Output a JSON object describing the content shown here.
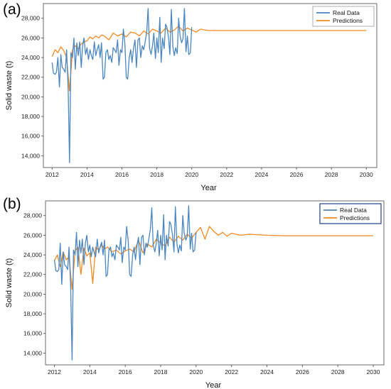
{
  "chart_data": [
    {
      "type": "line",
      "panel_label": "(a)",
      "xlabel": "Year",
      "ylabel": "Solid waste (t)",
      "xlim": [
        2011.5,
        2030.6
      ],
      "ylim": [
        12800,
        29500
      ],
      "xticks": [
        2012,
        2014,
        2016,
        2018,
        2020,
        2022,
        2024,
        2026,
        2028,
        2030
      ],
      "yticks": [
        14000,
        16000,
        18000,
        20000,
        22000,
        24000,
        26000,
        28000
      ],
      "grid": false,
      "legend_position": "top-right",
      "series": [
        {
          "name": "Real Data",
          "color": "#4a86c0",
          "x": [
            2012.0,
            2012.08,
            2012.17,
            2012.25,
            2012.33,
            2012.42,
            2012.5,
            2012.58,
            2012.67,
            2012.75,
            2012.83,
            2012.92,
            2013.0,
            2013.08,
            2013.17,
            2013.25,
            2013.33,
            2013.42,
            2013.5,
            2013.58,
            2013.67,
            2013.75,
            2013.83,
            2013.92,
            2014.0,
            2014.08,
            2014.17,
            2014.25,
            2014.33,
            2014.42,
            2014.5,
            2014.58,
            2014.67,
            2014.75,
            2014.83,
            2014.92,
            2015.0,
            2015.08,
            2015.17,
            2015.25,
            2015.33,
            2015.42,
            2015.5,
            2015.58,
            2015.67,
            2015.75,
            2015.83,
            2015.92,
            2016.0,
            2016.08,
            2016.17,
            2016.25,
            2016.33,
            2016.42,
            2016.5,
            2016.58,
            2016.67,
            2016.75,
            2016.83,
            2016.92,
            2017.0,
            2017.08,
            2017.17,
            2017.25,
            2017.33,
            2017.42,
            2017.5,
            2017.58,
            2017.67,
            2017.75,
            2017.83,
            2017.92,
            2018.0,
            2018.08,
            2018.17,
            2018.25,
            2018.33,
            2018.42,
            2018.5,
            2018.58,
            2018.67,
            2018.75,
            2018.83,
            2018.92,
            2019.0,
            2019.08,
            2019.17,
            2019.25,
            2019.33,
            2019.42,
            2019.5,
            2019.58,
            2019.67,
            2019.75,
            2019.83,
            2019.92,
            2020.0
          ],
          "y": [
            23500,
            22400,
            22300,
            22500,
            24000,
            21000,
            24300,
            23000,
            22800,
            22500,
            24800,
            20800,
            13300,
            24500,
            24000,
            26000,
            22800,
            25500,
            24200,
            25600,
            23000,
            25200,
            26000,
            24300,
            25000,
            23800,
            24800,
            24200,
            23800,
            25600,
            24200,
            24800,
            25300,
            24000,
            25500,
            21800,
            22000,
            24500,
            24800,
            23800,
            24200,
            23500,
            25000,
            24800,
            24500,
            25800,
            23200,
            24800,
            24500,
            26900,
            25400,
            22000,
            21800,
            24000,
            24800,
            23500,
            25000,
            25800,
            23000,
            25800,
            26000,
            24000,
            25200,
            24800,
            25600,
            26600,
            29000,
            25000,
            24300,
            25200,
            26500,
            23900,
            26000,
            24500,
            28100,
            23500,
            26000,
            24900,
            27400,
            27100,
            26000,
            24300,
            28900,
            25100,
            24200,
            25000,
            24400,
            28000,
            26200,
            25500,
            25900,
            29000,
            24600,
            26200,
            24300,
            24500,
            27100
          ]
        },
        {
          "name": "Predictions",
          "color": "#f08a24",
          "x": [
            2012.0,
            2012.17,
            2012.33,
            2012.5,
            2012.67,
            2012.83,
            2013.0,
            2013.17,
            2013.33,
            2013.5,
            2013.67,
            2013.83,
            2014.0,
            2014.17,
            2014.33,
            2014.5,
            2014.67,
            2014.83,
            2015.0,
            2015.25,
            2015.5,
            2015.75,
            2016.0,
            2016.25,
            2016.5,
            2016.75,
            2017.0,
            2017.25,
            2017.5,
            2017.75,
            2018.0,
            2018.25,
            2018.5,
            2018.75,
            2019.0,
            2019.25,
            2019.5,
            2019.75,
            2020.0,
            2020.25,
            2020.5,
            2020.75,
            2021.0,
            2021.5,
            2022.0,
            2024.0,
            2026.0,
            2028.0,
            2030.0
          ],
          "y": [
            24100,
            24800,
            24500,
            25100,
            24700,
            24000,
            20600,
            24800,
            25200,
            24900,
            25400,
            25600,
            25700,
            26100,
            25900,
            26200,
            26000,
            26300,
            26200,
            25800,
            26500,
            26200,
            26400,
            26100,
            26600,
            26500,
            26200,
            26700,
            26400,
            26900,
            26700,
            26500,
            27000,
            26600,
            26800,
            27200,
            26700,
            27000,
            26800,
            26600,
            26900,
            26800,
            26750,
            26750,
            26750,
            26750,
            26750,
            26750,
            26750
          ]
        }
      ]
    },
    {
      "type": "line",
      "panel_label": "(b)",
      "xlabel": "Year",
      "ylabel": "Solid waste (t)",
      "xlim": [
        2011.5,
        2030.6
      ],
      "ylim": [
        12800,
        29500
      ],
      "xticks": [
        2012,
        2014,
        2016,
        2018,
        2020,
        2022,
        2024,
        2026,
        2028,
        2030
      ],
      "yticks": [
        14000,
        16000,
        18000,
        20000,
        22000,
        24000,
        26000,
        28000
      ],
      "grid": false,
      "legend_position": "top-right",
      "series": [
        {
          "name": "Real Data",
          "color": "#4a86c0",
          "x": [
            2012.0,
            2012.08,
            2012.17,
            2012.25,
            2012.33,
            2012.42,
            2012.5,
            2012.58,
            2012.67,
            2012.75,
            2012.83,
            2012.92,
            2013.0,
            2013.08,
            2013.17,
            2013.25,
            2013.33,
            2013.42,
            2013.5,
            2013.58,
            2013.67,
            2013.75,
            2013.83,
            2013.92,
            2014.0,
            2014.08,
            2014.17,
            2014.25,
            2014.33,
            2014.42,
            2014.5,
            2014.58,
            2014.67,
            2014.75,
            2014.83,
            2014.92,
            2015.0,
            2015.08,
            2015.17,
            2015.25,
            2015.33,
            2015.42,
            2015.5,
            2015.58,
            2015.67,
            2015.75,
            2015.83,
            2015.92,
            2016.0,
            2016.08,
            2016.17,
            2016.25,
            2016.33,
            2016.42,
            2016.5,
            2016.58,
            2016.67,
            2016.75,
            2016.83,
            2016.92,
            2017.0,
            2017.08,
            2017.17,
            2017.25,
            2017.33,
            2017.42,
            2017.5,
            2017.58,
            2017.67,
            2017.75,
            2017.83,
            2017.92,
            2018.0,
            2018.08,
            2018.17,
            2018.25,
            2018.33,
            2018.42,
            2018.5,
            2018.58,
            2018.67,
            2018.75,
            2018.83,
            2018.92,
            2019.0,
            2019.08,
            2019.17,
            2019.25,
            2019.33,
            2019.42,
            2019.5,
            2019.58,
            2019.67,
            2019.75,
            2019.83,
            2019.92,
            2020.0
          ],
          "y": [
            23500,
            22400,
            22300,
            22500,
            25200,
            21000,
            24300,
            23000,
            22800,
            22500,
            24800,
            20800,
            13300,
            24500,
            24000,
            26300,
            22800,
            25500,
            24200,
            25600,
            23000,
            25200,
            26000,
            24300,
            25000,
            23800,
            24800,
            24200,
            23800,
            25600,
            24200,
            24800,
            25300,
            24000,
            25500,
            21800,
            22000,
            24500,
            24800,
            23800,
            24200,
            23500,
            25000,
            24800,
            24500,
            25800,
            23200,
            24800,
            24500,
            26900,
            25400,
            22000,
            21800,
            24000,
            24800,
            23500,
            25000,
            25800,
            23000,
            25800,
            26000,
            24000,
            25200,
            24800,
            25600,
            26600,
            28800,
            25000,
            24300,
            25200,
            26500,
            23900,
            26000,
            24500,
            28100,
            23500,
            26000,
            24900,
            27400,
            27100,
            26000,
            24300,
            28900,
            25100,
            24200,
            25000,
            24400,
            28000,
            26200,
            25500,
            25900,
            29000,
            24600,
            26200,
            24300,
            24500,
            26300
          ]
        },
        {
          "name": "Predictions",
          "color": "#f08a24",
          "x": [
            2012.0,
            2012.17,
            2012.33,
            2012.5,
            2012.67,
            2012.83,
            2013.0,
            2013.17,
            2013.33,
            2013.5,
            2013.67,
            2013.83,
            2014.0,
            2014.17,
            2014.33,
            2014.5,
            2014.67,
            2014.83,
            2015.0,
            2015.25,
            2015.5,
            2015.75,
            2016.0,
            2016.25,
            2016.5,
            2016.75,
            2017.0,
            2017.25,
            2017.5,
            2017.75,
            2018.0,
            2018.25,
            2018.5,
            2018.75,
            2019.0,
            2019.25,
            2019.5,
            2019.75,
            2020.0,
            2020.25,
            2020.5,
            2020.75,
            2021.0,
            2021.25,
            2021.5,
            2021.75,
            2022.0,
            2022.5,
            2023.0,
            2024.0,
            2025.0,
            2026.0,
            2028.0,
            2030.0
          ],
          "y": [
            23400,
            24000,
            22800,
            24300,
            23500,
            23800,
            20500,
            24400,
            24800,
            22000,
            24700,
            23900,
            24200,
            21100,
            24800,
            24500,
            25000,
            24600,
            24800,
            24300,
            24500,
            24100,
            24400,
            24600,
            24300,
            25500,
            24200,
            25100,
            24800,
            25600,
            25200,
            24900,
            25800,
            25300,
            25900,
            25500,
            26100,
            25700,
            26300,
            26800,
            25600,
            26900,
            26400,
            26000,
            26300,
            25900,
            26200,
            26000,
            26100,
            26000,
            25950,
            25950,
            25950,
            25950
          ]
        }
      ]
    }
  ]
}
